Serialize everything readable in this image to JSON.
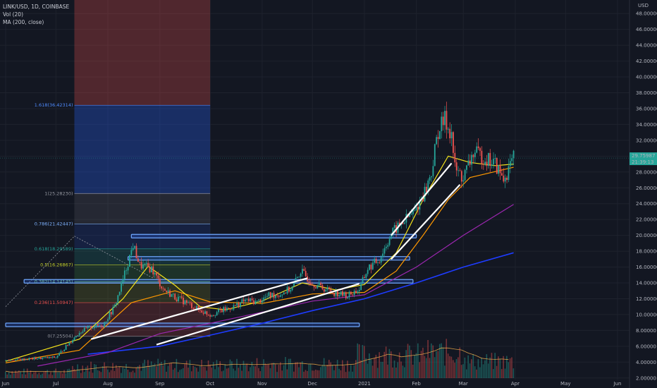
{
  "legend": {
    "symbol": "LINK/USD, 1D, COINBASE",
    "vol": "Vol (20)",
    "ma": "MA (200, close)"
  },
  "currency": "USD",
  "price_badge": {
    "price": "29.75987",
    "timer": "21:39:13"
  },
  "colors": {
    "bg": "#131722",
    "up": "#26a69a",
    "down": "#ef5350",
    "grid": "#1e222d",
    "fib_blue": "#2962ff",
    "ma20": "#f5e31a",
    "ma50": "#ff9800",
    "ma100": "#9c27b0",
    "ma200": "#1e3cff"
  },
  "fib_labels": [
    {
      "text": "1.618(36.42314)",
      "color": "#4f8cff"
    },
    {
      "text": "1(25.28230)",
      "color": "#9598a1"
    },
    {
      "text": "0.786(21.42447)",
      "color": "#7fb3ff"
    },
    {
      "text": "0.618(18.29589)",
      "color": "#26a69a"
    },
    {
      "text": "0.5(16.26867)",
      "color": "#c6d22a"
    },
    {
      "text": "0.382(14.14145)",
      "color": "#7fd17f"
    },
    {
      "text": "0.236(11.50947)",
      "color": "#ef5350"
    },
    {
      "text": "0(7.25504)",
      "color": "#9598a1"
    }
  ],
  "chart_data": {
    "type": "candlestick",
    "symbol": "LINK/USD",
    "timeframe": "1D",
    "exchange": "COINBASE",
    "y_axis": {
      "ticks": [
        "48.00000",
        "46.00000",
        "44.00000",
        "42.00000",
        "40.00000",
        "38.00000",
        "36.00000",
        "34.00000",
        "32.00000",
        "30.00000",
        "28.00000",
        "26.00000",
        "24.00000",
        "22.00000",
        "20.00000",
        "18.00000",
        "16.00000",
        "14.00000",
        "12.00000",
        "10.00000",
        "8.00000",
        "6.00000",
        "4.00000",
        "2.00000"
      ],
      "range": [
        1.8,
        49.0
      ]
    },
    "x_axis": {
      "ticks": [
        "Jun",
        "Jul",
        "Aug",
        "Sep",
        "Oct",
        "Nov",
        "Dec",
        "2021",
        "Feb",
        "Mar",
        "Apr",
        "May",
        "Jun"
      ]
    },
    "close_path": [
      [
        "2020-06-01",
        4.2
      ],
      [
        "2020-06-15",
        4.4
      ],
      [
        "2020-07-01",
        4.6
      ],
      [
        "2020-07-08",
        6.2
      ],
      [
        "2020-07-15",
        7.8
      ],
      [
        "2020-07-22",
        8.4
      ],
      [
        "2020-07-29",
        8.7
      ],
      [
        "2020-08-05",
        11.0
      ],
      [
        "2020-08-09",
        13.7
      ],
      [
        "2020-08-13",
        16.6
      ],
      [
        "2020-08-16",
        18.8
      ],
      [
        "2020-08-20",
        16.2
      ],
      [
        "2020-08-27",
        15.8
      ],
      [
        "2020-09-03",
        13.2
      ],
      [
        "2020-09-10",
        12.2
      ],
      [
        "2020-09-17",
        11.5
      ],
      [
        "2020-09-24",
        10.6
      ],
      [
        "2020-10-01",
        10.0
      ],
      [
        "2020-10-08",
        10.5
      ],
      [
        "2020-10-15",
        11.0
      ],
      [
        "2020-10-22",
        11.8
      ],
      [
        "2020-10-29",
        11.6
      ],
      [
        "2020-11-05",
        12.4
      ],
      [
        "2020-11-12",
        12.6
      ],
      [
        "2020-11-19",
        13.4
      ],
      [
        "2020-11-24",
        15.5
      ],
      [
        "2020-12-01",
        14.0
      ],
      [
        "2020-12-08",
        13.3
      ],
      [
        "2020-12-15",
        12.7
      ],
      [
        "2020-12-22",
        12.4
      ],
      [
        "2020-12-29",
        13.2
      ],
      [
        "2021-01-03",
        15.8
      ],
      [
        "2021-01-10",
        17.0
      ],
      [
        "2021-01-17",
        20.2
      ],
      [
        "2021-01-24",
        21.7
      ],
      [
        "2021-01-31",
        23.0
      ],
      [
        "2021-02-07",
        26.0
      ],
      [
        "2021-02-10",
        28.0
      ],
      [
        "2021-02-14",
        33.2
      ],
      [
        "2021-02-18",
        34.6
      ],
      [
        "2021-02-22",
        32.8
      ],
      [
        "2021-02-24",
        28.4
      ],
      [
        "2021-03-01",
        27.2
      ],
      [
        "2021-03-07",
        30.4
      ],
      [
        "2021-03-14",
        29.8
      ],
      [
        "2021-03-20",
        29.0
      ],
      [
        "2021-03-25",
        27.0
      ],
      [
        "2021-03-31",
        29.76
      ]
    ],
    "series": [
      {
        "name": "MA (200, close)",
        "color": "#1e3cff",
        "values": [
          [
            "2020-07-20",
            5.0
          ],
          [
            "2020-09-01",
            6.0
          ],
          [
            "2020-10-01",
            7.4
          ],
          [
            "2020-11-01",
            8.9
          ],
          [
            "2020-12-01",
            10.5
          ],
          [
            "2021-01-01",
            12.0
          ],
          [
            "2021-02-01",
            14.0
          ],
          [
            "2021-03-01",
            16.0
          ],
          [
            "2021-03-31",
            17.8
          ]
        ]
      },
      {
        "name": "",
        "color": "#9c27b0",
        "values": [
          [
            "2020-06-20",
            3.5
          ],
          [
            "2020-08-01",
            5.2
          ],
          [
            "2020-09-01",
            7.6
          ],
          [
            "2020-10-01",
            8.9
          ],
          [
            "2020-11-01",
            10.3
          ],
          [
            "2020-12-01",
            11.7
          ],
          [
            "2021-01-01",
            12.5
          ],
          [
            "2021-02-01",
            16.0
          ],
          [
            "2021-03-01",
            20.0
          ],
          [
            "2021-03-31",
            23.9
          ]
        ]
      },
      {
        "name": "",
        "color": "#ff9800",
        "values": [
          [
            "2020-06-01",
            3.9
          ],
          [
            "2020-07-15",
            5.5
          ],
          [
            "2020-08-15",
            11.5
          ],
          [
            "2020-09-10",
            13.0
          ],
          [
            "2020-10-01",
            11.6
          ],
          [
            "2020-11-01",
            11.4
          ],
          [
            "2020-12-01",
            12.6
          ],
          [
            "2021-01-01",
            12.8
          ],
          [
            "2021-01-20",
            15.5
          ],
          [
            "2021-02-05",
            20.0
          ],
          [
            "2021-02-20",
            24.5
          ],
          [
            "2021-03-05",
            27.3
          ],
          [
            "2021-03-31",
            28.6
          ]
        ]
      },
      {
        "name": "",
        "color": "#f5e31a",
        "values": [
          [
            "2020-06-01",
            4.1
          ],
          [
            "2020-07-15",
            6.9
          ],
          [
            "2020-08-10",
            12.0
          ],
          [
            "2020-08-25",
            16.1
          ],
          [
            "2020-09-10",
            13.7
          ],
          [
            "2020-09-25",
            11.0
          ],
          [
            "2020-10-10",
            10.6
          ],
          [
            "2020-11-01",
            11.7
          ],
          [
            "2020-11-25",
            14.0
          ],
          [
            "2020-12-15",
            13.1
          ],
          [
            "2021-01-01",
            13.8
          ],
          [
            "2021-01-20",
            17.8
          ],
          [
            "2021-02-05",
            24.5
          ],
          [
            "2021-02-20",
            30.0
          ],
          [
            "2021-03-05",
            29.2
          ],
          [
            "2021-03-20",
            28.8
          ],
          [
            "2021-03-31",
            29.0
          ]
        ]
      }
    ],
    "fibonacci": [
      {
        "level": 1.618,
        "price": 36.42314
      },
      {
        "level": 1,
        "price": 25.2823
      },
      {
        "level": 0.786,
        "price": 21.42447
      },
      {
        "level": 0.618,
        "price": 18.29589
      },
      {
        "level": 0.5,
        "price": 16.26867
      },
      {
        "level": 0.382,
        "price": 14.14145
      },
      {
        "level": 0.236,
        "price": 11.50947
      },
      {
        "level": 0,
        "price": 7.25504
      }
    ],
    "horizontal_levels": [
      19.9,
      17.1,
      14.2,
      8.7
    ],
    "trendlines": [
      {
        "from": [
          "2020-07-22",
          6.9
        ],
        "to": [
          "2020-11-28",
          14.6
        ]
      },
      {
        "from": [
          "2020-08-30",
          6.2
        ],
        "to": [
          "2020-12-29",
          13.9
        ]
      },
      {
        "from": [
          "2021-01-17",
          20.0
        ],
        "to": [
          "2021-02-22",
          29.1
        ]
      },
      {
        "from": [
          "2021-01-17",
          17.0
        ],
        "to": [
          "2021-02-27",
          26.4
        ]
      }
    ],
    "current_price": 29.75987
  }
}
